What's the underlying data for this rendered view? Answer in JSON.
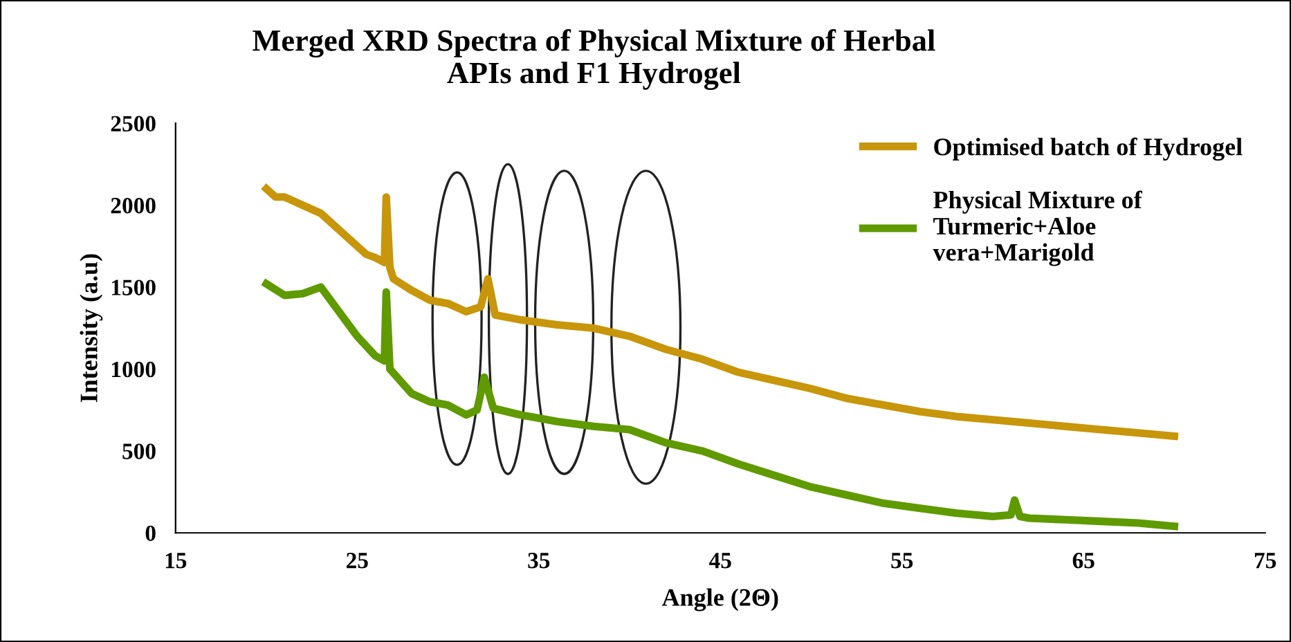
{
  "chart_data": {
    "type": "line",
    "title": "Merged XRD Spectra of Physical Mixture of Herbal\nAPIs and F1 Hydrogel",
    "xlabel": "Angle (2Θ)",
    "ylabel": "Intensity (a.u)",
    "xlim": [
      15,
      75
    ],
    "xticks": [
      15,
      25,
      35,
      45,
      55,
      65,
      75
    ],
    "ylim": [
      0,
      2500
    ],
    "yticks": [
      0,
      500,
      1000,
      1500,
      2000,
      2500
    ],
    "grid": false,
    "legend": "top right",
    "marker": "none",
    "line_style": "solid",
    "series": [
      {
        "name": "Optimised batch of Hydrogel",
        "color": "#c8960a",
        "x": [
          20,
          20.5,
          21,
          22,
          23,
          24,
          25,
          25.5,
          26,
          26.5,
          26.6,
          26.8,
          27,
          28,
          29,
          30,
          31,
          31.8,
          32.2,
          32.6,
          34,
          36,
          38,
          40,
          42,
          44,
          46,
          48,
          50,
          52,
          54,
          56,
          58,
          60,
          62,
          65,
          68,
          70
        ],
        "values": [
          2100,
          2050,
          2050,
          2000,
          1950,
          1850,
          1750,
          1700,
          1680,
          1650,
          2050,
          1620,
          1550,
          1480,
          1420,
          1400,
          1350,
          1380,
          1550,
          1330,
          1300,
          1270,
          1250,
          1200,
          1120,
          1060,
          980,
          930,
          880,
          820,
          780,
          740,
          710,
          690,
          670,
          640,
          610,
          590
        ]
      },
      {
        "name": "Physical Mixture of Turmeric+Aloe vera+Marigold",
        "color": "#5f9a00",
        "x": [
          20,
          21,
          22,
          23,
          24,
          25,
          26,
          26.5,
          26.6,
          26.8,
          28,
          29,
          30,
          31,
          31.6,
          32,
          32.5,
          34,
          36,
          38,
          40,
          42,
          44,
          46,
          48,
          50,
          52,
          54,
          56,
          58,
          60,
          61,
          61.2,
          61.5,
          62,
          64,
          66,
          68,
          70
        ],
        "values": [
          1520,
          1450,
          1460,
          1500,
          1350,
          1200,
          1080,
          1050,
          1470,
          1000,
          850,
          800,
          780,
          720,
          750,
          950,
          760,
          720,
          680,
          650,
          630,
          550,
          500,
          420,
          350,
          280,
          230,
          180,
          150,
          120,
          100,
          110,
          200,
          100,
          90,
          80,
          70,
          60,
          40
        ]
      }
    ]
  }
}
